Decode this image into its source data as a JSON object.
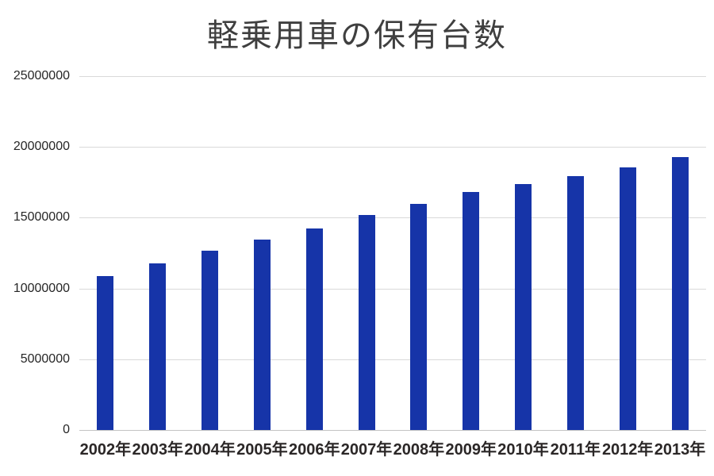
{
  "page": {
    "background_color": "#ffffff"
  },
  "chart_data": {
    "type": "bar",
    "title": "軽乗用車の保有台数",
    "categories": [
      "2002年",
      "2003年",
      "2004年",
      "2005年",
      "2006年",
      "2007年",
      "2008年",
      "2009年",
      "2010年",
      "2011年",
      "2012年",
      "2013年"
    ],
    "values": [
      10900000,
      11800000,
      12650000,
      13450000,
      14250000,
      15200000,
      16000000,
      16800000,
      17400000,
      17950000,
      18550000,
      19300000
    ],
    "xlabel": "",
    "ylabel": "",
    "ylim": [
      0,
      25000000
    ],
    "ytick_interval": 5000000,
    "ytick_labels_top_to_bottom": [
      "25000000",
      "20000000",
      "15000000",
      "10000000",
      "5000000",
      "0"
    ],
    "grid": true,
    "legend": "none",
    "bar_color": "#1634a8",
    "gridline_color": "#d9d9d9",
    "axis_line_color": "#c3c3c3",
    "title_color": "#3f3f3f",
    "tick_label_color": "#262626"
  }
}
